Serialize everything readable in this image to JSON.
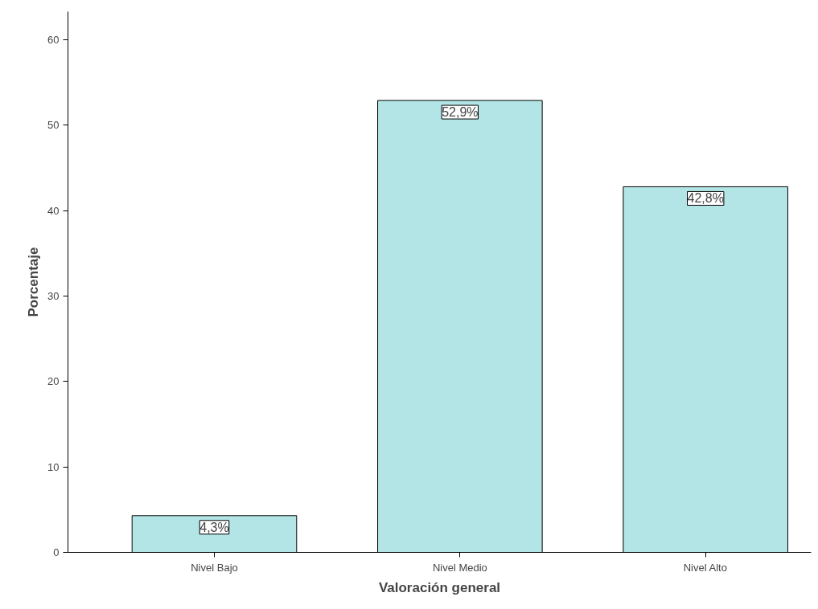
{
  "chart_data": {
    "type": "bar",
    "xlabel": "Valoración general",
    "ylabel": "Porcentaje",
    "categories": [
      "Nivel Bajo",
      "Nivel Medio",
      "Nivel Alto"
    ],
    "values": [
      4.3,
      52.9,
      42.8
    ],
    "value_labels": [
      "4,3%",
      "52,9%",
      "42,8%"
    ],
    "color": "#b3e5e6",
    "ylim": [
      0,
      63.3
    ],
    "yticks": [
      0,
      10,
      20,
      30,
      40,
      50,
      60
    ],
    "grid": false
  }
}
